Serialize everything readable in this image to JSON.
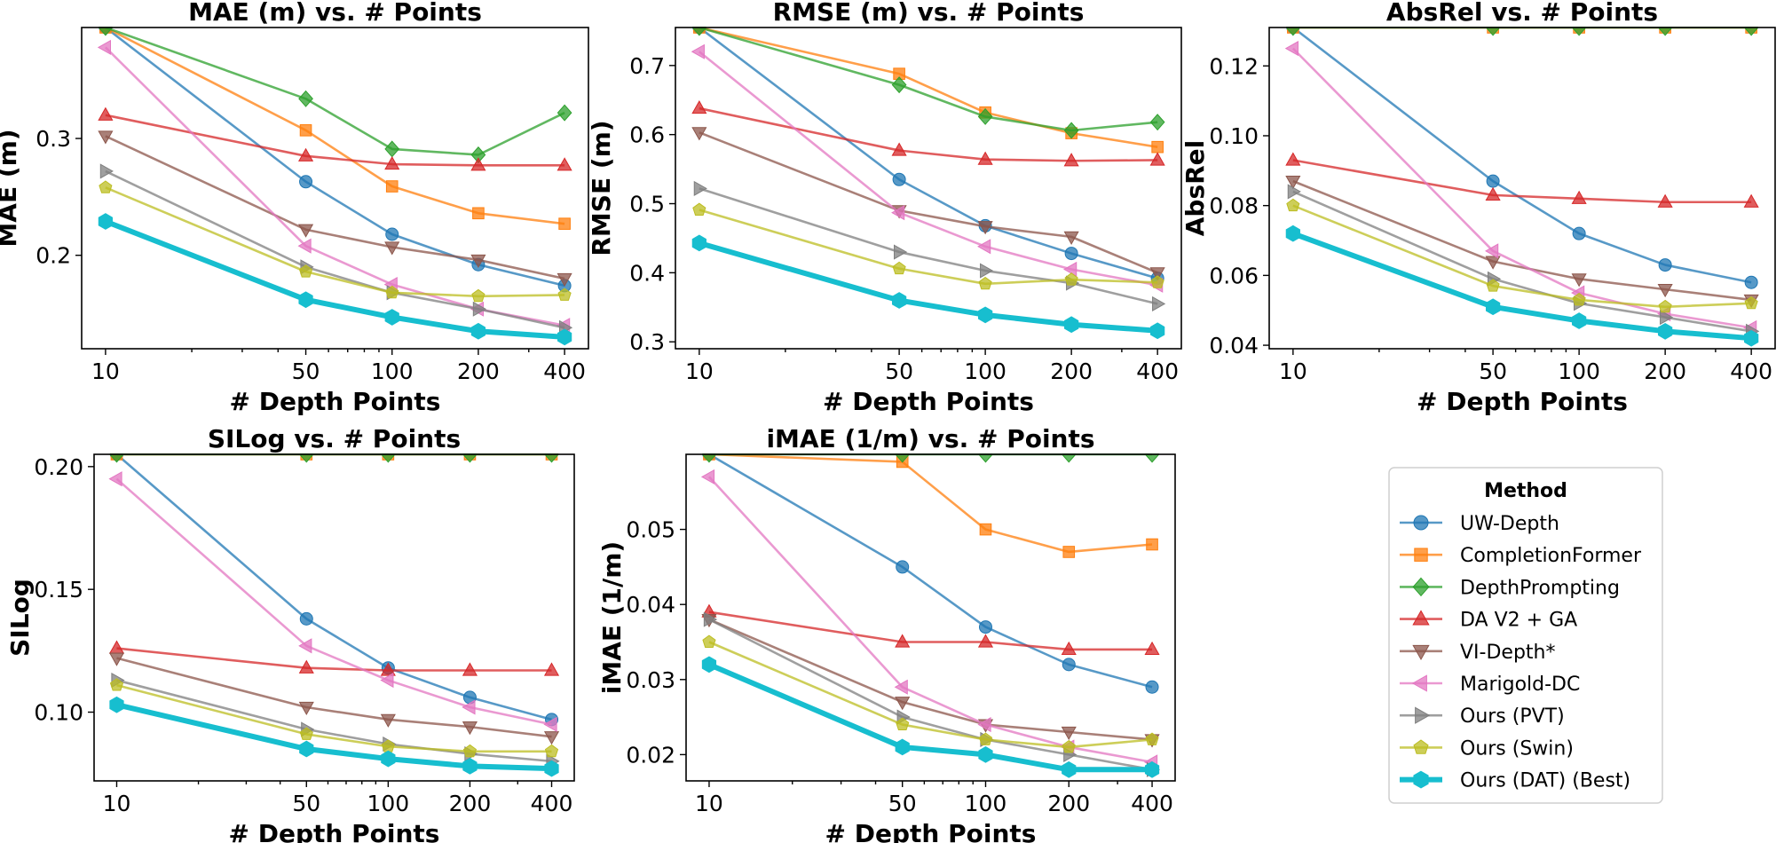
{
  "chart_data": [
    {
      "type": "line",
      "title": "MAE (m) vs. # Points",
      "xlabel": "# Depth Points",
      "ylabel": "MAE (m)",
      "xscale": "log",
      "x": [
        10,
        50,
        100,
        200,
        400
      ],
      "xticks": [
        "10",
        "50",
        "100",
        "200",
        "400"
      ],
      "ylim": [
        0.12,
        0.395
      ],
      "yticks": [
        0.2,
        0.3
      ],
      "ytick_labels": [
        "0.2",
        "0.3"
      ],
      "series": [
        {
          "name": "UW-Depth",
          "values": [
            0.395,
            0.263,
            0.218,
            0.192,
            0.174
          ]
        },
        {
          "name": "CompletionFormer",
          "values": [
            0.395,
            0.307,
            0.259,
            0.236,
            0.227
          ]
        },
        {
          "name": "DepthPrompting",
          "values": [
            0.395,
            0.334,
            0.291,
            0.286,
            0.322
          ]
        },
        {
          "name": "DA V2 + GA",
          "values": [
            0.32,
            0.285,
            0.278,
            0.277,
            0.277
          ]
        },
        {
          "name": "VI-Depth*",
          "values": [
            0.302,
            0.222,
            0.207,
            0.196,
            0.18
          ]
        },
        {
          "name": "Marigold-DC",
          "values": [
            0.378,
            0.208,
            0.175,
            0.154,
            0.14
          ]
        },
        {
          "name": "Ours (PVT)",
          "values": [
            0.272,
            0.19,
            0.168,
            0.154,
            0.138
          ]
        },
        {
          "name": "Ours (Swin)",
          "values": [
            0.258,
            0.186,
            0.168,
            0.165,
            0.166
          ]
        },
        {
          "name": "Ours (DAT) (Best)",
          "values": [
            0.229,
            0.162,
            0.147,
            0.135,
            0.13
          ]
        }
      ]
    },
    {
      "type": "line",
      "title": "RMSE (m) vs. # Points",
      "xlabel": "# Depth Points",
      "ylabel": "RMSE (m)",
      "xscale": "log",
      "x": [
        10,
        50,
        100,
        200,
        400
      ],
      "xticks": [
        "10",
        "50",
        "100",
        "200",
        "400"
      ],
      "ylim": [
        0.29,
        0.755
      ],
      "yticks": [
        0.3,
        0.4,
        0.5,
        0.6,
        0.7
      ],
      "ytick_labels": [
        "0.3",
        "0.4",
        "0.5",
        "0.6",
        "0.7"
      ],
      "series": [
        {
          "name": "UW-Depth",
          "values": [
            0.755,
            0.535,
            0.468,
            0.428,
            0.392
          ]
        },
        {
          "name": "CompletionFormer",
          "values": [
            0.755,
            0.688,
            0.632,
            0.602,
            0.582
          ]
        },
        {
          "name": "DepthPrompting",
          "values": [
            0.755,
            0.672,
            0.626,
            0.606,
            0.618
          ]
        },
        {
          "name": "DA V2 + GA",
          "values": [
            0.638,
            0.577,
            0.564,
            0.562,
            0.563
          ]
        },
        {
          "name": "VI-Depth*",
          "values": [
            0.603,
            0.49,
            0.467,
            0.452,
            0.4
          ]
        },
        {
          "name": "Marigold-DC",
          "values": [
            0.72,
            0.487,
            0.438,
            0.405,
            0.382
          ]
        },
        {
          "name": "Ours (PVT)",
          "values": [
            0.522,
            0.43,
            0.403,
            0.385,
            0.355
          ]
        },
        {
          "name": "Ours (Swin)",
          "values": [
            0.491,
            0.406,
            0.384,
            0.39,
            0.386
          ]
        },
        {
          "name": "Ours (DAT) (Best)",
          "values": [
            0.443,
            0.36,
            0.339,
            0.325,
            0.316
          ]
        }
      ]
    },
    {
      "type": "line",
      "title": "AbsRel vs. # Points",
      "xlabel": "# Depth Points",
      "ylabel": "AbsRel",
      "xscale": "log",
      "x": [
        10,
        50,
        100,
        200,
        400
      ],
      "xticks": [
        "10",
        "50",
        "100",
        "200",
        "400"
      ],
      "ylim": [
        0.039,
        0.131
      ],
      "yticks": [
        0.04,
        0.06,
        0.08,
        0.1,
        0.12
      ],
      "ytick_labels": [
        "0.04",
        "0.06",
        "0.08",
        "0.10",
        "0.12"
      ],
      "series": [
        {
          "name": "UW-Depth",
          "values": [
            0.131,
            0.087,
            0.072,
            0.063,
            0.058
          ]
        },
        {
          "name": "CompletionFormer",
          "values": [
            0.131,
            0.131,
            0.131,
            0.131,
            0.131
          ]
        },
        {
          "name": "DepthPrompting",
          "values": [
            0.131,
            0.131,
            0.131,
            0.131,
            0.131
          ]
        },
        {
          "name": "DA V2 + GA",
          "values": [
            0.093,
            0.083,
            0.082,
            0.081,
            0.081
          ]
        },
        {
          "name": "VI-Depth*",
          "values": [
            0.087,
            0.064,
            0.059,
            0.056,
            0.053
          ]
        },
        {
          "name": "Marigold-DC",
          "values": [
            0.125,
            0.067,
            0.055,
            0.049,
            0.045
          ]
        },
        {
          "name": "Ours (PVT)",
          "values": [
            0.084,
            0.059,
            0.052,
            0.048,
            0.044
          ]
        },
        {
          "name": "Ours (Swin)",
          "values": [
            0.08,
            0.057,
            0.053,
            0.051,
            0.052
          ]
        },
        {
          "name": "Ours (DAT) (Best)",
          "values": [
            0.072,
            0.051,
            0.047,
            0.044,
            0.042
          ]
        }
      ]
    },
    {
      "type": "line",
      "title": "SILog vs. # Points",
      "xlabel": "# Depth Points",
      "ylabel": "SILog",
      "xscale": "log",
      "x": [
        10,
        50,
        100,
        200,
        400
      ],
      "xticks": [
        "10",
        "50",
        "100",
        "200",
        "400"
      ],
      "ylim": [
        0.072,
        0.205
      ],
      "yticks": [
        0.1,
        0.15,
        0.2
      ],
      "ytick_labels": [
        "0.10",
        "0.15",
        "0.20"
      ],
      "series": [
        {
          "name": "UW-Depth",
          "values": [
            0.205,
            0.138,
            0.118,
            0.106,
            0.097
          ]
        },
        {
          "name": "CompletionFormer",
          "values": [
            0.205,
            0.205,
            0.205,
            0.205,
            0.205
          ]
        },
        {
          "name": "DepthPrompting",
          "values": [
            0.205,
            0.205,
            0.205,
            0.205,
            0.205
          ]
        },
        {
          "name": "DA V2 + GA",
          "values": [
            0.126,
            0.118,
            0.117,
            0.117,
            0.117
          ]
        },
        {
          "name": "VI-Depth*",
          "values": [
            0.122,
            0.102,
            0.097,
            0.094,
            0.09
          ]
        },
        {
          "name": "Marigold-DC",
          "values": [
            0.195,
            0.127,
            0.113,
            0.102,
            0.095
          ]
        },
        {
          "name": "Ours (PVT)",
          "values": [
            0.113,
            0.093,
            0.087,
            0.083,
            0.08
          ]
        },
        {
          "name": "Ours (Swin)",
          "values": [
            0.111,
            0.091,
            0.086,
            0.084,
            0.084
          ]
        },
        {
          "name": "Ours (DAT) (Best)",
          "values": [
            0.103,
            0.085,
            0.081,
            0.078,
            0.077
          ]
        }
      ]
    },
    {
      "type": "line",
      "title": "iMAE (1/m) vs. # Points",
      "xlabel": "# Depth Points",
      "ylabel": "iMAE (1/m)",
      "xscale": "log",
      "x": [
        10,
        50,
        100,
        200,
        400
      ],
      "xticks": [
        "10",
        "50",
        "100",
        "200",
        "400"
      ],
      "ylim": [
        0.0165,
        0.06
      ],
      "yticks": [
        0.02,
        0.03,
        0.04,
        0.05
      ],
      "ytick_labels": [
        "0.02",
        "0.03",
        "0.04",
        "0.05"
      ],
      "series": [
        {
          "name": "UW-Depth",
          "values": [
            0.06,
            0.045,
            0.037,
            0.032,
            0.029
          ]
        },
        {
          "name": "CompletionFormer",
          "values": [
            0.06,
            0.059,
            0.05,
            0.047,
            0.048
          ]
        },
        {
          "name": "DepthPrompting",
          "values": [
            0.06,
            0.06,
            0.06,
            0.06,
            0.06
          ]
        },
        {
          "name": "DA V2 + GA",
          "values": [
            0.039,
            0.035,
            0.035,
            0.034,
            0.034
          ]
        },
        {
          "name": "VI-Depth*",
          "values": [
            0.038,
            0.027,
            0.024,
            0.023,
            0.022
          ]
        },
        {
          "name": "Marigold-DC",
          "values": [
            0.057,
            0.029,
            0.024,
            0.021,
            0.019
          ]
        },
        {
          "name": "Ours (PVT)",
          "values": [
            0.038,
            0.025,
            0.022,
            0.02,
            0.018
          ]
        },
        {
          "name": "Ours (Swin)",
          "values": [
            0.035,
            0.024,
            0.022,
            0.021,
            0.022
          ]
        },
        {
          "name": "Ours (DAT) (Best)",
          "values": [
            0.032,
            0.021,
            0.02,
            0.018,
            0.018
          ]
        }
      ]
    }
  ],
  "legend": {
    "title": "Method",
    "placement": "bottom-right",
    "entries": [
      {
        "name": "UW-Depth",
        "color": "#1f77b4",
        "marker": "circle"
      },
      {
        "name": "CompletionFormer",
        "color": "#ff7f0e",
        "marker": "square"
      },
      {
        "name": "DepthPrompting",
        "color": "#2ca02c",
        "marker": "diamond"
      },
      {
        "name": "DA V2 + GA",
        "color": "#d62728",
        "marker": "triangle-up"
      },
      {
        "name": "VI-Depth*",
        "color": "#8c564b",
        "marker": "triangle-down"
      },
      {
        "name": "Marigold-DC",
        "color": "#e377c2",
        "marker": "triangle-left"
      },
      {
        "name": "Ours (PVT)",
        "color": "#7f7f7f",
        "marker": "triangle-right"
      },
      {
        "name": "Ours (Swin)",
        "color": "#bcbd22",
        "marker": "pentagon"
      },
      {
        "name": "Ours (DAT) (Best)",
        "color": "#17becf",
        "marker": "hexagon"
      }
    ]
  }
}
